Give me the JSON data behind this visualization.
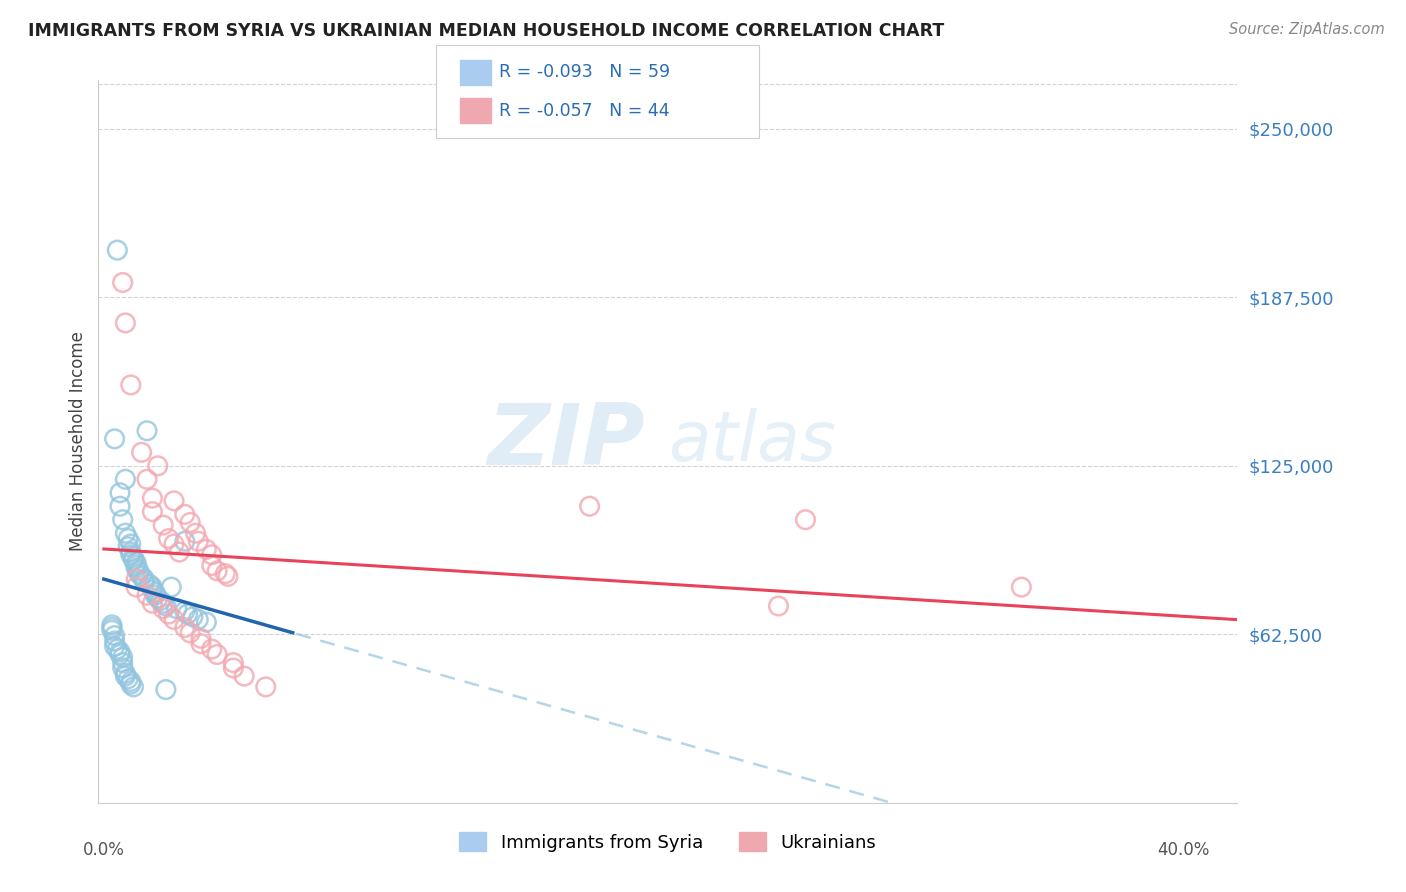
{
  "title": "IMMIGRANTS FROM SYRIA VS UKRAINIAN MEDIAN HOUSEHOLD INCOME CORRELATION CHART",
  "source": "Source: ZipAtlas.com",
  "ylabel": "Median Household Income",
  "ytick_labels": [
    "$250,000",
    "$187,500",
    "$125,000",
    "$62,500"
  ],
  "ytick_values": [
    250000,
    187500,
    125000,
    62500
  ],
  "ylim": [
    0,
    268000
  ],
  "xlim": [
    -0.002,
    0.42
  ],
  "legend_blue_r": "-0.093",
  "legend_blue_n": "59",
  "legend_pink_r": "-0.057",
  "legend_pink_n": "44",
  "watermark_zip": "ZIP",
  "watermark_atlas": "atlas",
  "blue_color": "#92c5de",
  "pink_color": "#f4a7b0",
  "blue_line_color": "#2166ac",
  "pink_line_color": "#e8435a",
  "blue_dash_color": "#92c5de",
  "background_color": "#ffffff",
  "grid_color": "#c8c8c8",
  "blue_scatter": [
    [
      0.005,
      205000
    ],
    [
      0.004,
      135000
    ],
    [
      0.006,
      115000
    ],
    [
      0.006,
      110000
    ],
    [
      0.007,
      105000
    ],
    [
      0.008,
      120000
    ],
    [
      0.008,
      100000
    ],
    [
      0.009,
      98000
    ],
    [
      0.009,
      95000
    ],
    [
      0.01,
      96000
    ],
    [
      0.01,
      93000
    ],
    [
      0.01,
      92000
    ],
    [
      0.011,
      91000
    ],
    [
      0.011,
      90000
    ],
    [
      0.012,
      89000
    ],
    [
      0.012,
      88000
    ],
    [
      0.012,
      87000
    ],
    [
      0.013,
      86000
    ],
    [
      0.013,
      85000
    ],
    [
      0.014,
      84000
    ],
    [
      0.015,
      83000
    ],
    [
      0.015,
      82000
    ],
    [
      0.016,
      138000
    ],
    [
      0.017,
      81000
    ],
    [
      0.018,
      80000
    ],
    [
      0.018,
      79000
    ],
    [
      0.019,
      78000
    ],
    [
      0.019,
      77000
    ],
    [
      0.02,
      76000
    ],
    [
      0.021,
      75000
    ],
    [
      0.022,
      74000
    ],
    [
      0.023,
      73000
    ],
    [
      0.025,
      80000
    ],
    [
      0.027,
      72000
    ],
    [
      0.03,
      97000
    ],
    [
      0.03,
      71000
    ],
    [
      0.031,
      70000
    ],
    [
      0.033,
      69000
    ],
    [
      0.035,
      68000
    ],
    [
      0.038,
      67000
    ],
    [
      0.003,
      66000
    ],
    [
      0.003,
      65000
    ],
    [
      0.003,
      64000
    ],
    [
      0.004,
      62000
    ],
    [
      0.004,
      60000
    ],
    [
      0.004,
      58000
    ],
    [
      0.005,
      57000
    ],
    [
      0.006,
      56000
    ],
    [
      0.006,
      55000
    ],
    [
      0.007,
      54000
    ],
    [
      0.007,
      52000
    ],
    [
      0.007,
      50000
    ],
    [
      0.008,
      48000
    ],
    [
      0.008,
      47000
    ],
    [
      0.009,
      46000
    ],
    [
      0.01,
      45000
    ],
    [
      0.01,
      44000
    ],
    [
      0.011,
      43000
    ],
    [
      0.023,
      42000
    ]
  ],
  "pink_scatter": [
    [
      0.007,
      193000
    ],
    [
      0.008,
      178000
    ],
    [
      0.01,
      155000
    ],
    [
      0.014,
      130000
    ],
    [
      0.016,
      120000
    ],
    [
      0.018,
      113000
    ],
    [
      0.018,
      108000
    ],
    [
      0.02,
      125000
    ],
    [
      0.022,
      103000
    ],
    [
      0.024,
      98000
    ],
    [
      0.026,
      112000
    ],
    [
      0.026,
      96000
    ],
    [
      0.028,
      93000
    ],
    [
      0.03,
      107000
    ],
    [
      0.032,
      104000
    ],
    [
      0.034,
      100000
    ],
    [
      0.035,
      97000
    ],
    [
      0.038,
      94000
    ],
    [
      0.04,
      92000
    ],
    [
      0.04,
      88000
    ],
    [
      0.042,
      86000
    ],
    [
      0.045,
      85000
    ],
    [
      0.046,
      84000
    ],
    [
      0.012,
      83000
    ],
    [
      0.012,
      80000
    ],
    [
      0.016,
      77000
    ],
    [
      0.018,
      74000
    ],
    [
      0.022,
      72000
    ],
    [
      0.024,
      70000
    ],
    [
      0.026,
      68000
    ],
    [
      0.03,
      65000
    ],
    [
      0.032,
      63000
    ],
    [
      0.036,
      61000
    ],
    [
      0.036,
      59000
    ],
    [
      0.04,
      57000
    ],
    [
      0.042,
      55000
    ],
    [
      0.048,
      52000
    ],
    [
      0.048,
      50000
    ],
    [
      0.052,
      47000
    ],
    [
      0.06,
      43000
    ],
    [
      0.18,
      110000
    ],
    [
      0.26,
      105000
    ],
    [
      0.25,
      73000
    ],
    [
      0.34,
      80000
    ]
  ]
}
